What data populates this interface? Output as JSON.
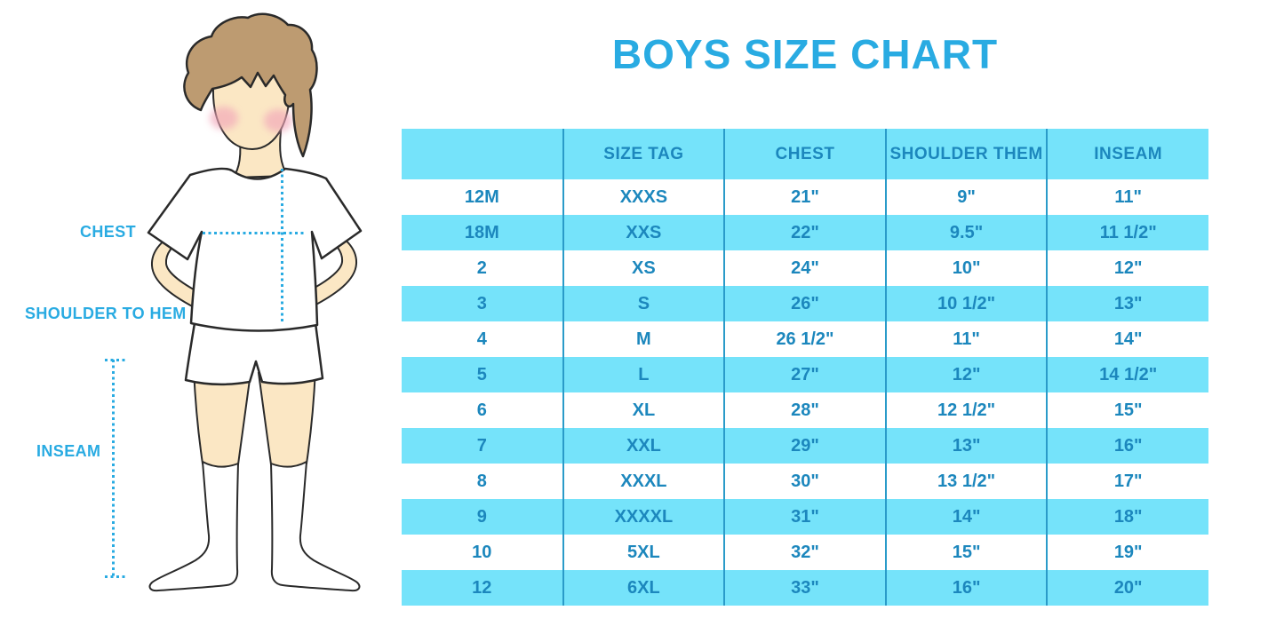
{
  "title": "BOYS SIZE CHART",
  "figure": {
    "chest_label": "CHEST",
    "shoulder_to_hem_label": "SHOULDER TO HEM",
    "inseam_label": "INSEAM"
  },
  "chart_data": {
    "type": "table",
    "title": "BOYS SIZE CHART",
    "columns": [
      "",
      "SIZE TAG",
      "CHEST",
      "SHOULDER THEM",
      "INSEAM"
    ],
    "rows": [
      [
        "12M",
        "XXXS",
        "21\"",
        "9\"",
        "11\""
      ],
      [
        "18M",
        "XXS",
        "22\"",
        "9.5\"",
        "11 1/2\""
      ],
      [
        "2",
        "XS",
        "24\"",
        "10\"",
        "12\""
      ],
      [
        "3",
        "S",
        "26\"",
        "10 1/2\"",
        "13\""
      ],
      [
        "4",
        "M",
        "26 1/2\"",
        "11\"",
        "14\""
      ],
      [
        "5",
        "L",
        "27\"",
        "12\"",
        "14 1/2\""
      ],
      [
        "6",
        "XL",
        "28\"",
        "12 1/2\"",
        "15\""
      ],
      [
        "7",
        "XXL",
        "29\"",
        "13\"",
        "16\""
      ],
      [
        "8",
        "XXXL",
        "30\"",
        "13 1/2\"",
        "17\""
      ],
      [
        "9",
        "XXXXL",
        "31\"",
        "14\"",
        "18\""
      ],
      [
        "10",
        "5XL",
        "32\"",
        "15\"",
        "19\""
      ],
      [
        "12",
        "6XL",
        "33\"",
        "16\"",
        "20\""
      ]
    ],
    "layout": {
      "header_background": "cyan",
      "row_striping": "white/cyan alternating",
      "grid": "vertical dividers only"
    }
  },
  "colors": {
    "accent_blue": "#29ABE2",
    "table_text_blue": "#1C87BD",
    "stripe_cyan": "#75E3FA",
    "divider_blue": "#2A9BC9",
    "skin": "#FBE7C4",
    "hair": "#BD9B71",
    "blush": "#F2A6B9",
    "outline": "#2A2A2A"
  }
}
